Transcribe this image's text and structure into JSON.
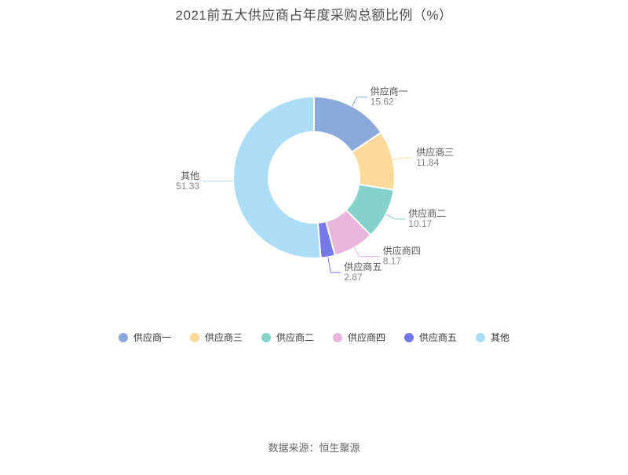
{
  "page": {
    "title": "2021前五大供应商占年度采购总额比例（%）",
    "source": "数据来源：恒生聚源"
  },
  "chart_data": {
    "type": "pie",
    "subtype": "donut",
    "title": "2021前五大供应商占年度采购总额比例（%）",
    "unit": "%",
    "total": 100,
    "start_angle": "top",
    "direction": "clockwise",
    "legend_position": "bottom",
    "label_style": "name above value, connected with leader line in slice color",
    "series": [
      {
        "name": "供应商一",
        "value": 15.62,
        "color": "#8BA8DB"
      },
      {
        "name": "供应商三",
        "value": 11.84,
        "color": "#FDD99A"
      },
      {
        "name": "供应商二",
        "value": 10.17,
        "color": "#84D2CA"
      },
      {
        "name": "供应商四",
        "value": 8.17,
        "color": "#E9B6DB"
      },
      {
        "name": "供应商五",
        "value": 2.87,
        "color": "#7478E8"
      },
      {
        "name": "其他",
        "value": 51.33,
        "color": "#ABDDF7"
      }
    ],
    "legend": [
      "供应商一",
      "供应商三",
      "供应商二",
      "供应商四",
      "供应商五",
      "其他"
    ]
  }
}
